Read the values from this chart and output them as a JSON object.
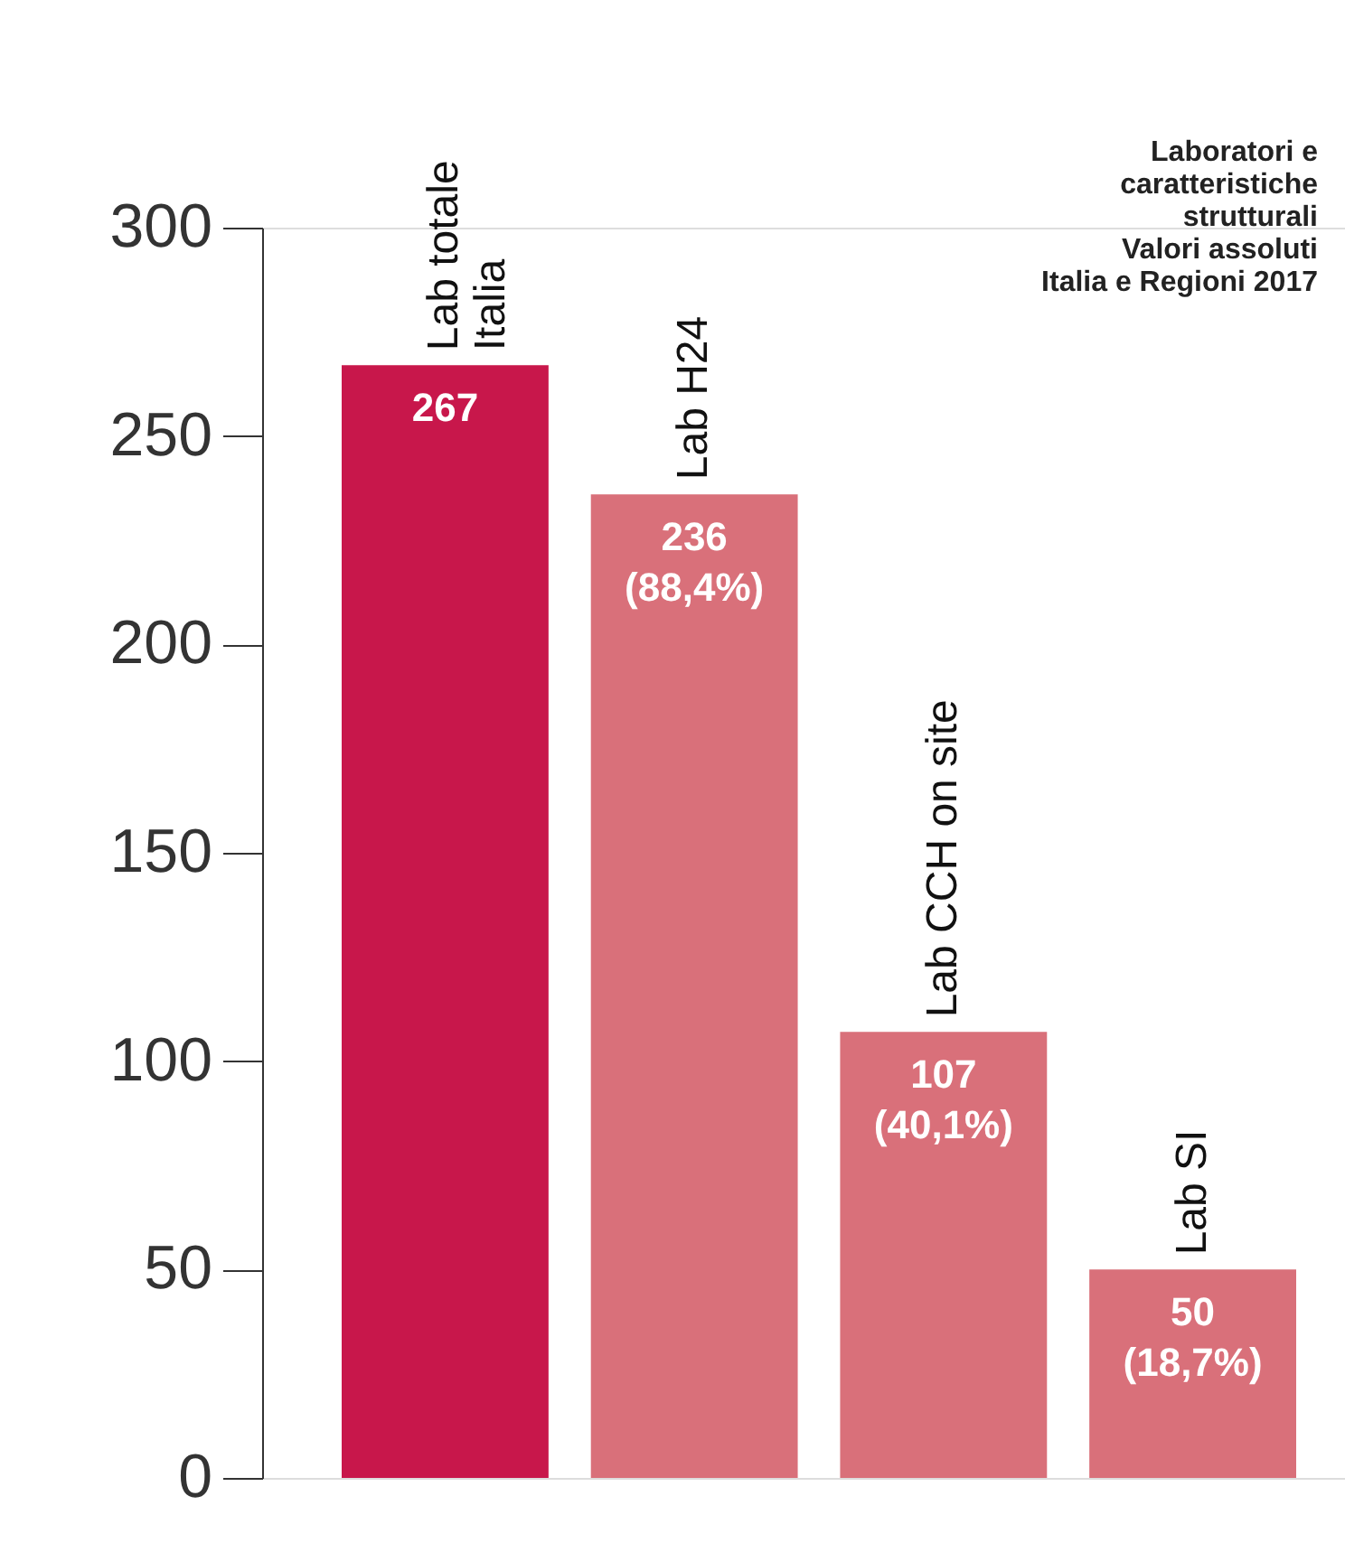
{
  "chart_data": {
    "type": "bar",
    "title": "Laboratori e\ncaratteristiche\nstrutturali\nValori assoluti\nItalia e Regioni 2017",
    "categories": [
      "Lab totale\nItalia",
      "Lab H24",
      "Lab CCH on site",
      "Lab SI"
    ],
    "values": [
      267,
      236,
      107,
      50
    ],
    "colors": [
      "#c8174b",
      "#d9707a",
      "#d9707a",
      "#d9707a"
    ],
    "value_labels": [
      "267",
      "236\n(88,4%)",
      "107\n(40,1%)",
      "50\n(18,7%)"
    ],
    "ylim": [
      0,
      300
    ],
    "yticks": [
      0,
      50,
      100,
      150,
      200,
      250,
      300
    ]
  }
}
